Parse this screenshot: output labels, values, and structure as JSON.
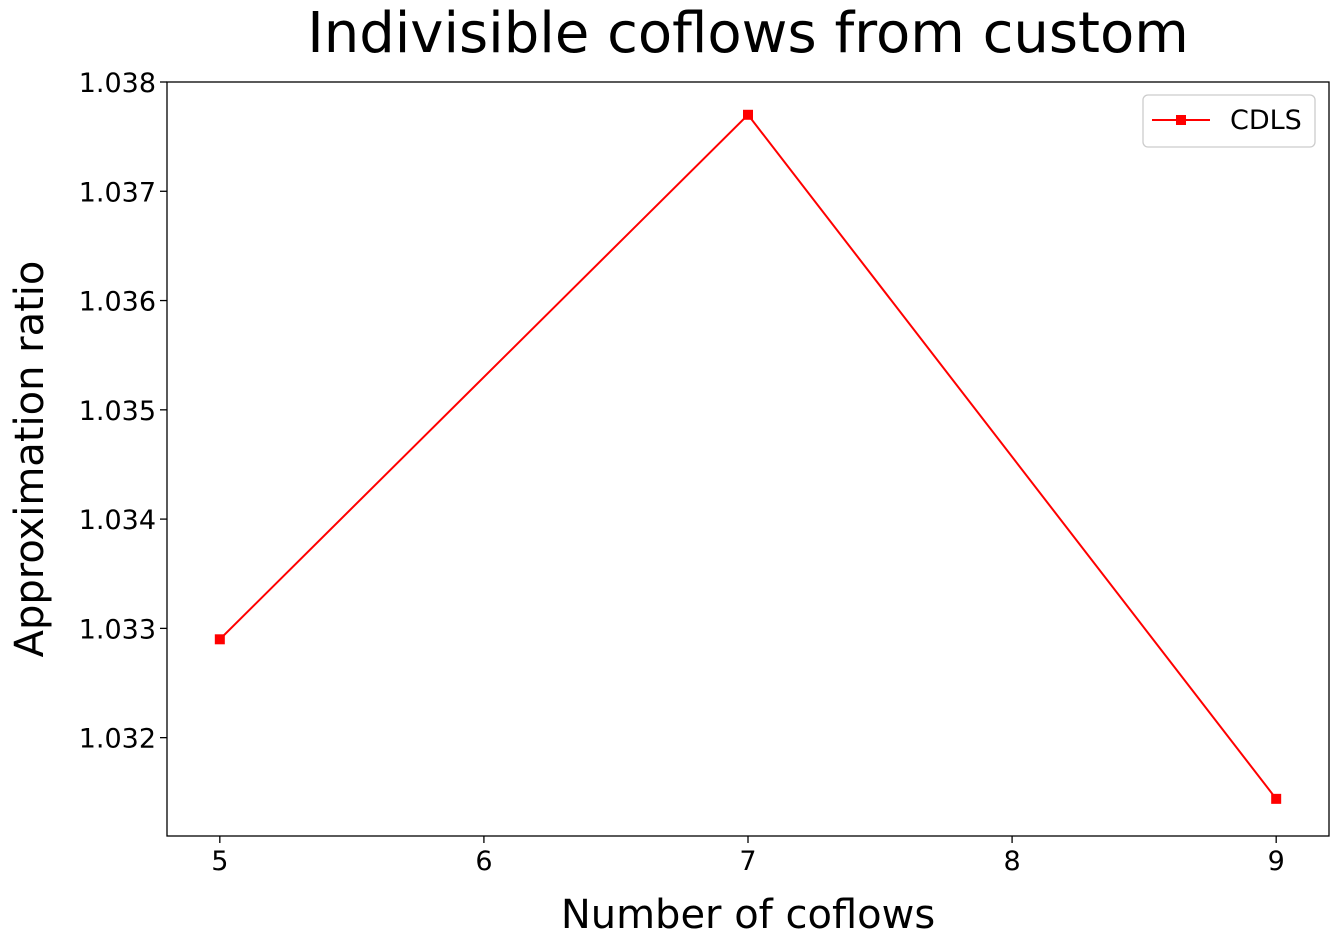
{
  "chart_data": {
    "type": "line",
    "title": "Indivisible coflows from custom",
    "xlabel": "Number of coflows",
    "ylabel": "Approximation ratio",
    "x": [
      5,
      7,
      9
    ],
    "series": [
      {
        "name": "CDLS",
        "color": "#ff0000",
        "marker": "square",
        "values": [
          1.0329,
          1.0377,
          1.03144
        ]
      }
    ],
    "xticks": [
      5,
      6,
      7,
      8,
      9
    ],
    "xtick_labels": [
      "5",
      "6",
      "7",
      "8",
      "9"
    ],
    "yticks": [
      1.032,
      1.033,
      1.034,
      1.035,
      1.036,
      1.037,
      1.038
    ],
    "ytick_labels": [
      "1.032",
      "1.033",
      "1.034",
      "1.035",
      "1.036",
      "1.037",
      "1.038"
    ],
    "xlim": [
      4.8,
      9.2
    ],
    "ylim": [
      1.0311,
      1.038
    ],
    "grid": false,
    "legend_position": "top-right"
  }
}
